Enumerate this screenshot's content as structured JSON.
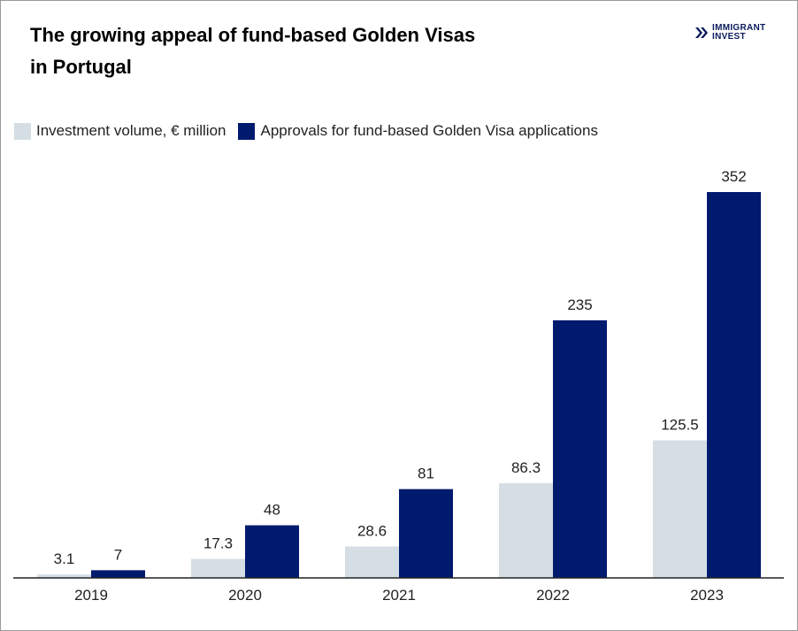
{
  "title_line1": "The growing appeal of fund-based Golden Visas",
  "title_line2": "in Portugal",
  "logo": {
    "line1": "IMMIGRANT",
    "line2": "INVEST"
  },
  "colors": {
    "investment": "#d4dee4",
    "approvals": "#001a6e",
    "axis": "#222222"
  },
  "chart_data": {
    "type": "bar",
    "title": "The growing appeal of fund-based Golden Visas in Portugal",
    "categories": [
      "2019",
      "2020",
      "2021",
      "2022",
      "2023"
    ],
    "series": [
      {
        "name": "Investment volume, € million",
        "values": [
          3.1,
          17.3,
          28.6,
          86.3,
          125.5
        ],
        "labels": [
          "3.1",
          "17.3",
          "28.6",
          "86.3",
          "125.5"
        ]
      },
      {
        "name": "Approvals for fund-based Golden Visa applications",
        "values": [
          7,
          48,
          81,
          235,
          352
        ],
        "labels": [
          "7",
          "48",
          "81",
          "235",
          "352"
        ]
      }
    ],
    "ylim": [
      0,
      352
    ],
    "grid": false,
    "legend": "top-left"
  }
}
